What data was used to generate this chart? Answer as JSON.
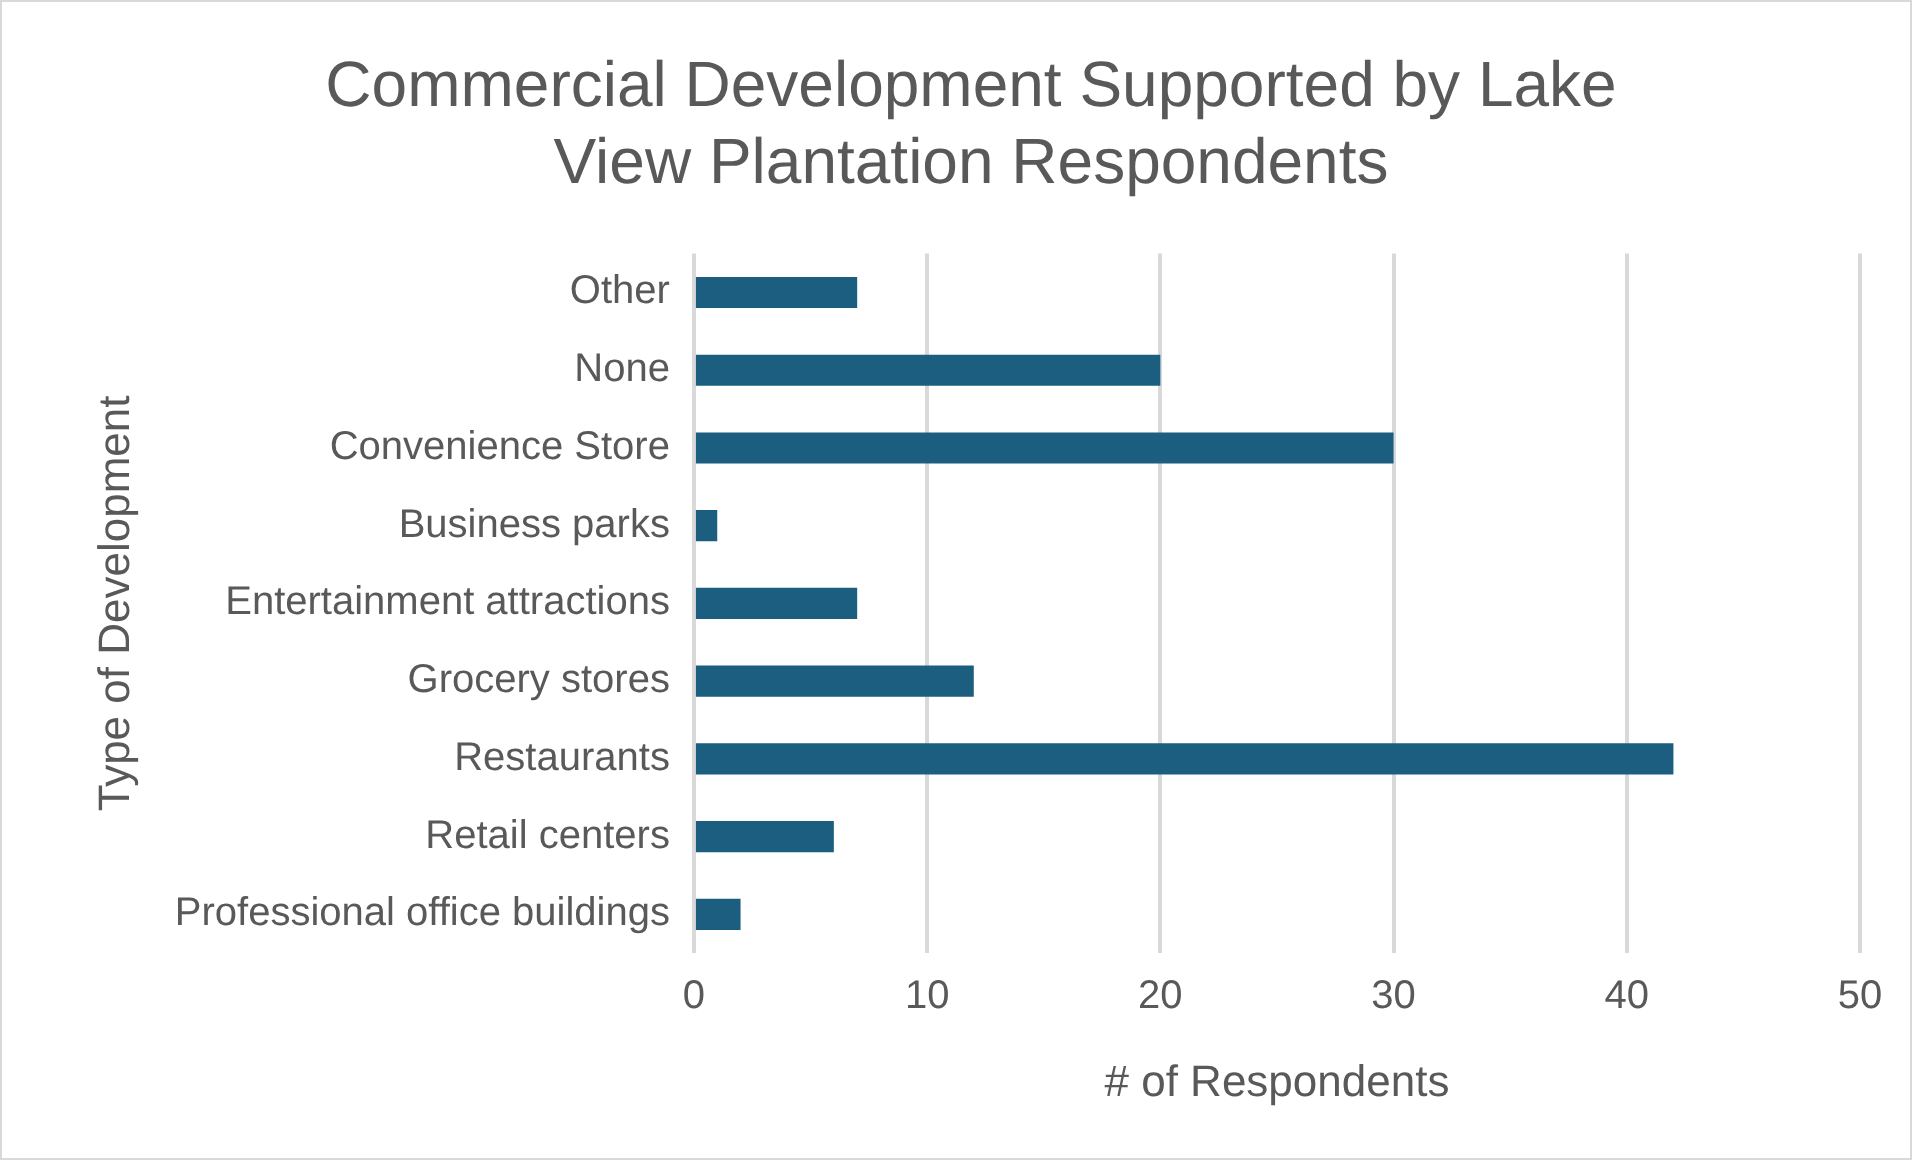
{
  "chart_data": {
    "type": "bar",
    "orientation": "horizontal",
    "title": "Commercial Development Supported by Lake View Plantation Respondents",
    "xlabel": "# of Respondents",
    "ylabel": "Type of Development",
    "categories": [
      "Other",
      "None",
      "Convenience Store",
      "Business parks",
      "Entertainment attractions",
      "Grocery stores",
      "Restaurants",
      "Retail centers",
      "Professional office buildings"
    ],
    "values": [
      7,
      20,
      30,
      1,
      7,
      12,
      42,
      6,
      2
    ],
    "color": "#1b5e80",
    "xlim": [
      0,
      50
    ],
    "xticks": [
      0,
      10,
      20,
      30,
      40,
      50
    ],
    "grid": "x",
    "legend": false
  }
}
